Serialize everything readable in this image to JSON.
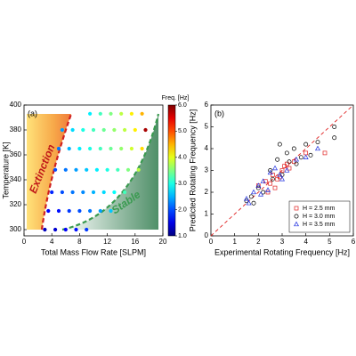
{
  "chart_data": [
    {
      "type": "scatter",
      "panel_label": "(a)",
      "xlabel": "Total Mass Flow Rate [SLPM]",
      "ylabel": "Temperature [K]",
      "xlim": [
        0,
        20
      ],
      "xticks": [
        0,
        4,
        8,
        12,
        16,
        20
      ],
      "ylim": [
        295,
        400
      ],
      "yticks": [
        300,
        320,
        340,
        360,
        380,
        400
      ],
      "colormap": "jet",
      "colorbar": {
        "label": "Freq. [Hz]",
        "lim": [
          1,
          6
        ],
        "ticks": [
          {
            "value": 1,
            "label": "1.0"
          },
          {
            "value": 2,
            "label": "2.0"
          },
          {
            "value": 3,
            "label": "3.0"
          },
          {
            "value": 4,
            "label": "4.0"
          },
          {
            "value": 5,
            "label": "5.0"
          },
          {
            "value": 6,
            "label": "6.0"
          }
        ]
      },
      "annotations": [
        "Extinction",
        "Stable"
      ],
      "x": [
        9.5,
        11,
        12.5,
        14,
        15.5,
        17,
        5.5,
        7,
        8.5,
        10,
        11.5,
        13,
        14.5,
        16,
        17.5,
        5,
        6.5,
        8,
        9.5,
        11,
        12.5,
        14,
        15.5,
        17,
        4.5,
        6,
        7.5,
        9,
        10.5,
        12,
        13.5,
        15,
        16.5,
        4,
        5.5,
        7,
        8.5,
        10,
        11.5,
        13,
        14.5,
        3.5,
        5,
        6.5,
        8,
        9.5,
        11,
        12.5,
        3,
        4.5,
        6,
        7.5,
        9
      ],
      "y": [
        393,
        393,
        393,
        393,
        393,
        393,
        380,
        380,
        380,
        380,
        380,
        380,
        380,
        380,
        380,
        365,
        365,
        365,
        365,
        365,
        365,
        365,
        365,
        365,
        348,
        348,
        348,
        348,
        348,
        348,
        348,
        348,
        348,
        330,
        330,
        330,
        330,
        330,
        330,
        330,
        330,
        315,
        315,
        315,
        315,
        315,
        315,
        315,
        300,
        300,
        300,
        300,
        300
      ],
      "c": [
        2.8,
        3.2,
        3.5,
        3.8,
        4.2,
        4.5,
        2.4,
        2.7,
        3.0,
        3.2,
        3.4,
        3.6,
        3.8,
        4.2,
        5.8,
        2.2,
        2.5,
        2.8,
        3.0,
        3.2,
        3.4,
        3.6,
        3.9,
        4.3,
        2.0,
        2.2,
        2.4,
        2.6,
        2.8,
        3.0,
        3.2,
        3.5,
        3.8,
        1.8,
        2.0,
        2.2,
        2.3,
        2.5,
        2.7,
        2.9,
        3.2,
        1.6,
        1.7,
        1.9,
        2.0,
        2.2,
        2.4,
        2.6,
        1.3,
        1.4,
        1.6,
        1.7,
        1.9
      ]
    },
    {
      "type": "scatter",
      "panel_label": "(b)",
      "xlabel": "Experimental Rotating Frequency [Hz]",
      "ylabel": "Predicted Rotating Frequency [Hz]",
      "xlim": [
        0,
        6
      ],
      "xticks": [
        0,
        1,
        2,
        3,
        4,
        5,
        6
      ],
      "ylim": [
        0,
        6
      ],
      "yticks": [
        0,
        1,
        2,
        3,
        4,
        5,
        6
      ],
      "legend": "lower right",
      "series": [
        {
          "name": "H = 2.5 mm",
          "color": "#e02020",
          "marker": "square",
          "x": [
            2.0,
            2.3,
            2.5,
            2.6,
            2.8,
            3.0,
            3.1,
            3.3,
            3.5,
            2.4,
            2.7,
            2.9,
            4.0,
            4.8,
            3.2
          ],
          "y": [
            2.3,
            2.5,
            2.4,
            2.8,
            2.6,
            3.0,
            3.2,
            3.1,
            3.4,
            2.0,
            2.2,
            2.7,
            3.8,
            3.8,
            3.3
          ]
        },
        {
          "name": "H = 3.0 mm",
          "color": "#000000",
          "marker": "circle",
          "x": [
            1.5,
            1.7,
            2.0,
            2.2,
            2.5,
            2.8,
            3.0,
            3.2,
            3.5,
            3.8,
            4.0,
            4.2,
            4.5,
            5.2,
            5.2,
            2.6,
            3.3,
            1.8,
            2.9,
            3.6
          ],
          "y": [
            1.6,
            1.8,
            2.2,
            2.0,
            3.0,
            3.5,
            2.8,
            3.8,
            4.0,
            3.6,
            4.2,
            3.7,
            4.3,
            5.0,
            4.5,
            2.6,
            3.4,
            1.5,
            4.2,
            3.3
          ]
        },
        {
          "name": "H = 3.5 mm",
          "color": "#2030e0",
          "marker": "triangle",
          "x": [
            1.5,
            1.6,
            1.8,
            2.0,
            2.2,
            2.4,
            2.5,
            2.7,
            3.0,
            3.2,
            3.6,
            4.0,
            4.5,
            2.1,
            2.9
          ],
          "y": [
            1.7,
            1.5,
            2.0,
            2.3,
            2.5,
            2.1,
            2.9,
            3.1,
            2.6,
            3.0,
            3.5,
            3.6,
            4.0,
            1.9,
            2.8
          ]
        }
      ]
    }
  ]
}
